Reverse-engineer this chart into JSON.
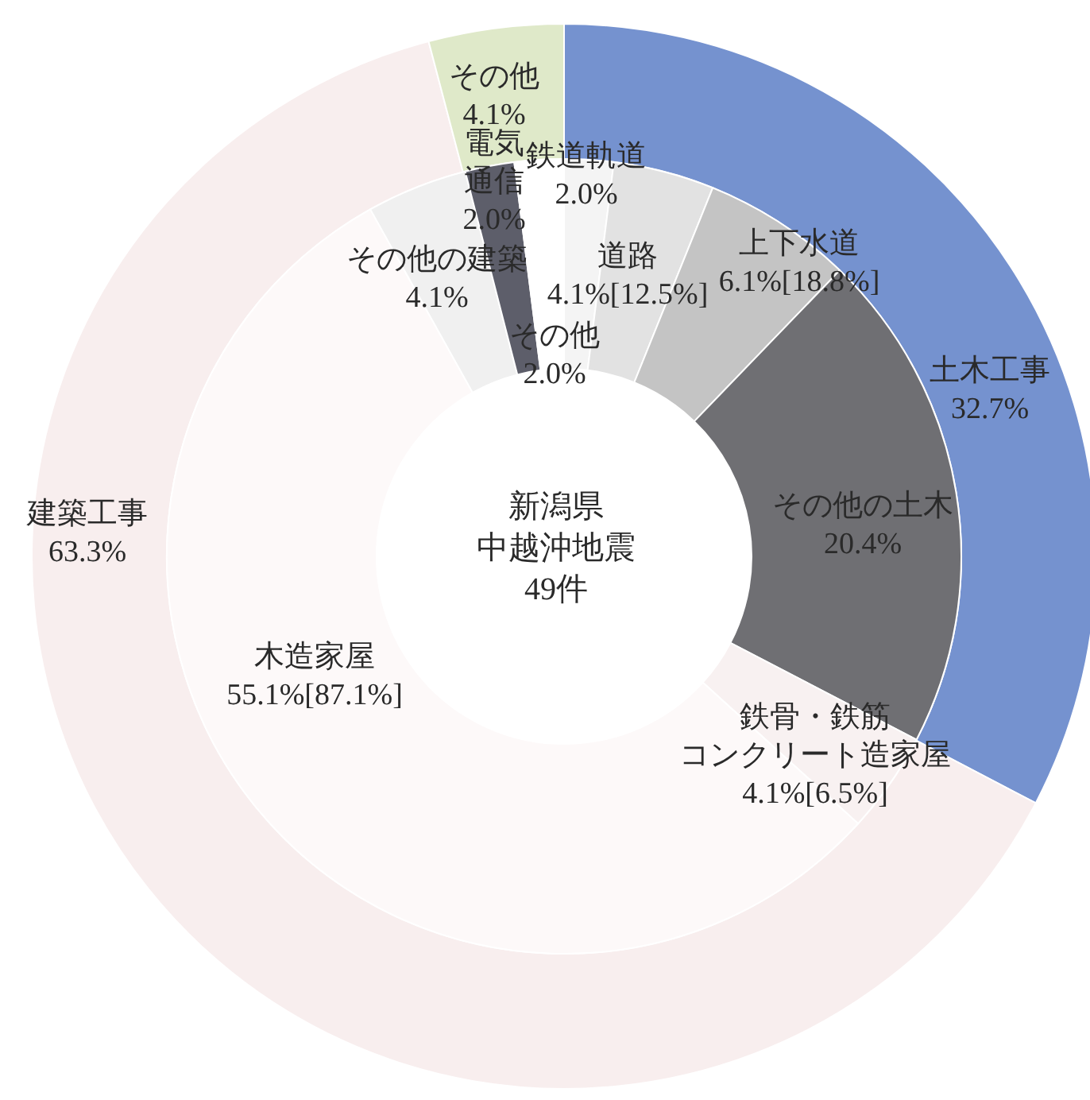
{
  "chart_data": [
    {
      "type": "donut",
      "categories": [
        "土木工事",
        "建築工事",
        "その他"
      ],
      "values": [
        32.7,
        63.3,
        4.1
      ],
      "value_labels": [
        "32.7%",
        "63.3%",
        "4.1%"
      ],
      "colors": [
        "#7592cf",
        "#f8eeee",
        "#dfe9c9"
      ]
    },
    {
      "type": "donut",
      "annotations": [
        "新潟県",
        "中越沖地震",
        "49件"
      ],
      "categories": [
        "鉄道軌道",
        "道路",
        "上下水道",
        "その他の土木",
        "鉄骨・鉄筋コンクリート造家屋",
        "木造家屋",
        "その他の建築",
        "電気通信",
        "その他"
      ],
      "values": [
        2.0,
        4.1,
        6.1,
        20.4,
        4.1,
        55.1,
        4.1,
        2.0,
        2.0
      ],
      "value_labels": [
        "2.0%",
        "4.1%[12.5%]",
        "6.1%[18.8%]",
        "20.4%",
        "4.1%[6.5%]",
        "55.1%[87.1%]",
        "4.1%",
        "2.0%",
        "2.0%"
      ],
      "colors": [
        "#f4f4f4",
        "#e2e2e2",
        "#c4c4c4",
        "#6f6f73",
        "#f8f1f1",
        "#fdf9f9",
        "#f0f0f0",
        "#5d5e6a",
        "#ffffff"
      ]
    }
  ]
}
